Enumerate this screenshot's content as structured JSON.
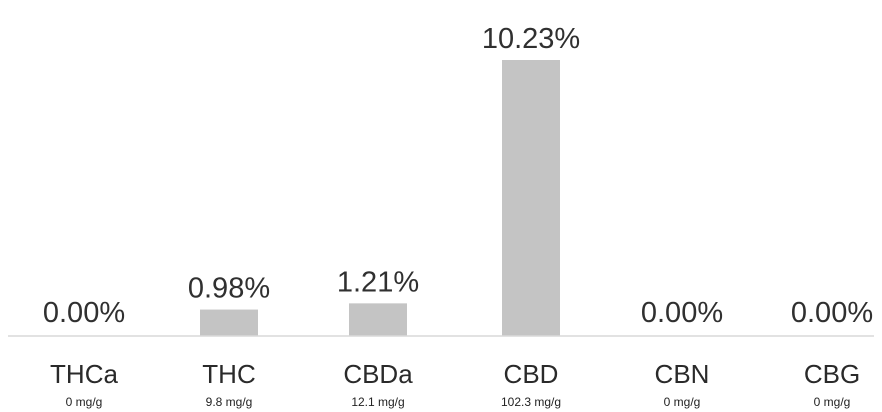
{
  "chart_data": {
    "type": "bar",
    "categories": [
      "THCa",
      "THC",
      "CBDa",
      "CBD",
      "CBN",
      "CBG"
    ],
    "values": [
      0.0,
      0.98,
      1.21,
      10.23,
      0.0,
      0.0
    ],
    "value_labels": [
      "0.00%",
      "0.98%",
      "1.21%",
      "10.23%",
      "0.00%",
      "0.00%"
    ],
    "sub_labels": [
      "0 mg/g",
      "9.8 mg/g",
      "12.1 mg/g",
      "102.3 mg/g",
      "0 mg/g",
      "0 mg/g"
    ],
    "ylim": [
      0,
      10.23
    ],
    "grid": false,
    "legend": "none",
    "colors": {
      "bar": "#c4c4c4",
      "axis": "#d9d9d9",
      "text": "#303030"
    }
  }
}
